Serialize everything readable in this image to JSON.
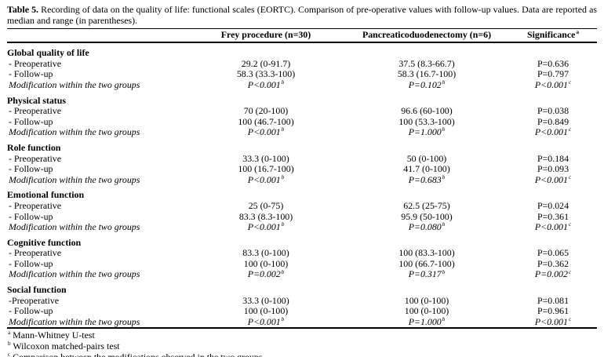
{
  "caption": {
    "label": "Table 5.",
    "text": "Recording of data on the quality of life: functional scales (EORTC). Comparison of pre-operative values with follow-up values. Data are reported as median and range (in parentheses)."
  },
  "table": {
    "columns": [
      "Frey procedure (n=30)",
      "Pancreaticoduodenectomy (n=6)",
      "Significance^a"
    ],
    "sections": [
      {
        "name": "Global quality of life",
        "rows": [
          {
            "label": "- Preoperative",
            "italic": false,
            "cells": [
              "29.2 (0-91.7)",
              "37.5 (8.3-66.7)",
              "P=0.636"
            ]
          },
          {
            "label": "- Follow-up",
            "italic": false,
            "cells": [
              "58.3 (33.3-100)",
              "58.3 (16.7-100)",
              "P=0.797"
            ]
          },
          {
            "label": "Modification within the two groups",
            "italic": true,
            "cells": [
              "P<0.001^b",
              "P=0.102^b",
              "P<0.001^c"
            ]
          }
        ]
      },
      {
        "name": "Physical status",
        "rows": [
          {
            "label": "- Preoperative",
            "italic": false,
            "cells": [
              "70 (20-100)",
              "96.6 (60-100)",
              "P=0.038"
            ]
          },
          {
            "label": "- Follow-up",
            "italic": false,
            "cells": [
              "100 (46.7-100)",
              "100 (53.3-100)",
              "P=0.849"
            ]
          },
          {
            "label": "Modification within the two groups",
            "italic": true,
            "cells": [
              "P<0.001^b",
              "P=1.000^b",
              "P<0.001^c"
            ]
          }
        ]
      },
      {
        "name": "Role function",
        "rows": [
          {
            "label": "- Preoperative",
            "italic": false,
            "cells": [
              "33.3 (0-100)",
              "50 (0-100)",
              "P=0.184"
            ]
          },
          {
            "label": "- Follow-up",
            "italic": false,
            "cells": [
              "100 (16.7-100)",
              "41.7 (0-100)",
              "P=0.093"
            ]
          },
          {
            "label": "Modification within the two groups",
            "italic": true,
            "cells": [
              "P<0.001^b",
              "P=0.683^b",
              "P<0.001^c"
            ]
          }
        ]
      },
      {
        "name": "Emotional function",
        "rows": [
          {
            "label": "- Preoperative",
            "italic": false,
            "cells": [
              "25 (0-75)",
              "62.5 (25-75)",
              "P=0.024"
            ]
          },
          {
            "label": "- Follow-up",
            "italic": false,
            "cells": [
              "83.3 (8.3-100)",
              "95.9 (50-100)",
              "P=0.361"
            ]
          },
          {
            "label": "Modification within the two groups",
            "italic": true,
            "cells": [
              "P<0.001^b",
              "P=0.080^b",
              "P<0.001^c"
            ]
          }
        ]
      },
      {
        "name": "Cognitive function",
        "rows": [
          {
            "label": "- Preoperative",
            "italic": false,
            "cells": [
              "83.3 (0-100)",
              "100 (83.3-100)",
              "P=0.065"
            ]
          },
          {
            "label": "- Follow-up",
            "italic": false,
            "cells": [
              "100 (0-100)",
              "100 (66.7-100)",
              "P=0.362"
            ]
          },
          {
            "label": "Modification within the two groups",
            "italic": true,
            "cells": [
              "P=0.002^b",
              "P=0.317^b",
              "P=0.002^c"
            ]
          }
        ]
      },
      {
        "name": "Social function",
        "rows": [
          {
            "label": "-Preoperative",
            "italic": false,
            "cells": [
              "33.3 (0-100)",
              "100 (0-100)",
              "P=0.081"
            ]
          },
          {
            "label": "- Follow-up",
            "italic": false,
            "cells": [
              "100 (0-100)",
              "100 (0-100)",
              "P=0.961"
            ]
          },
          {
            "label": "Modification within the two groups",
            "italic": true,
            "cells": [
              "P<0.001^b",
              "P=1.000^b",
              "P<0.001^c"
            ]
          }
        ]
      }
    ]
  },
  "footnotes": [
    {
      "marker": "a",
      "text": "Mann-Whitney U-test"
    },
    {
      "marker": "b",
      "text": "Wilcoxon matched-pairs test"
    },
    {
      "marker": "c",
      "text": "Comparison between the modifications observed in the two groups."
    }
  ]
}
